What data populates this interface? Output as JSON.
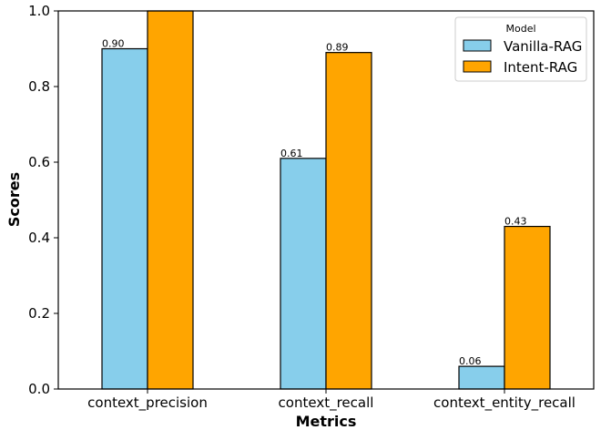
{
  "chart_data": {
    "type": "bar",
    "title": "",
    "xlabel": "Metrics",
    "ylabel": "Scores",
    "ylim": [
      0,
      1.0
    ],
    "yticks": [
      "0.0",
      "0.2",
      "0.4",
      "0.6",
      "0.8",
      "1.0"
    ],
    "categories": [
      "context_precision",
      "context_recall",
      "context_entity_recall"
    ],
    "legend": {
      "title": "Model",
      "position": "top-right"
    },
    "grid": false,
    "series": [
      {
        "name": "Vanilla-RAG",
        "color": "#87CEEB",
        "values": [
          0.9,
          0.61,
          0.06
        ],
        "labels": [
          "0.90",
          "0.61",
          "0.06"
        ]
      },
      {
        "name": "Intent-RAG",
        "color": "#FFA500",
        "values": [
          1.0,
          0.89,
          0.43
        ],
        "labels": [
          "",
          "0.89",
          "0.43"
        ]
      }
    ]
  }
}
